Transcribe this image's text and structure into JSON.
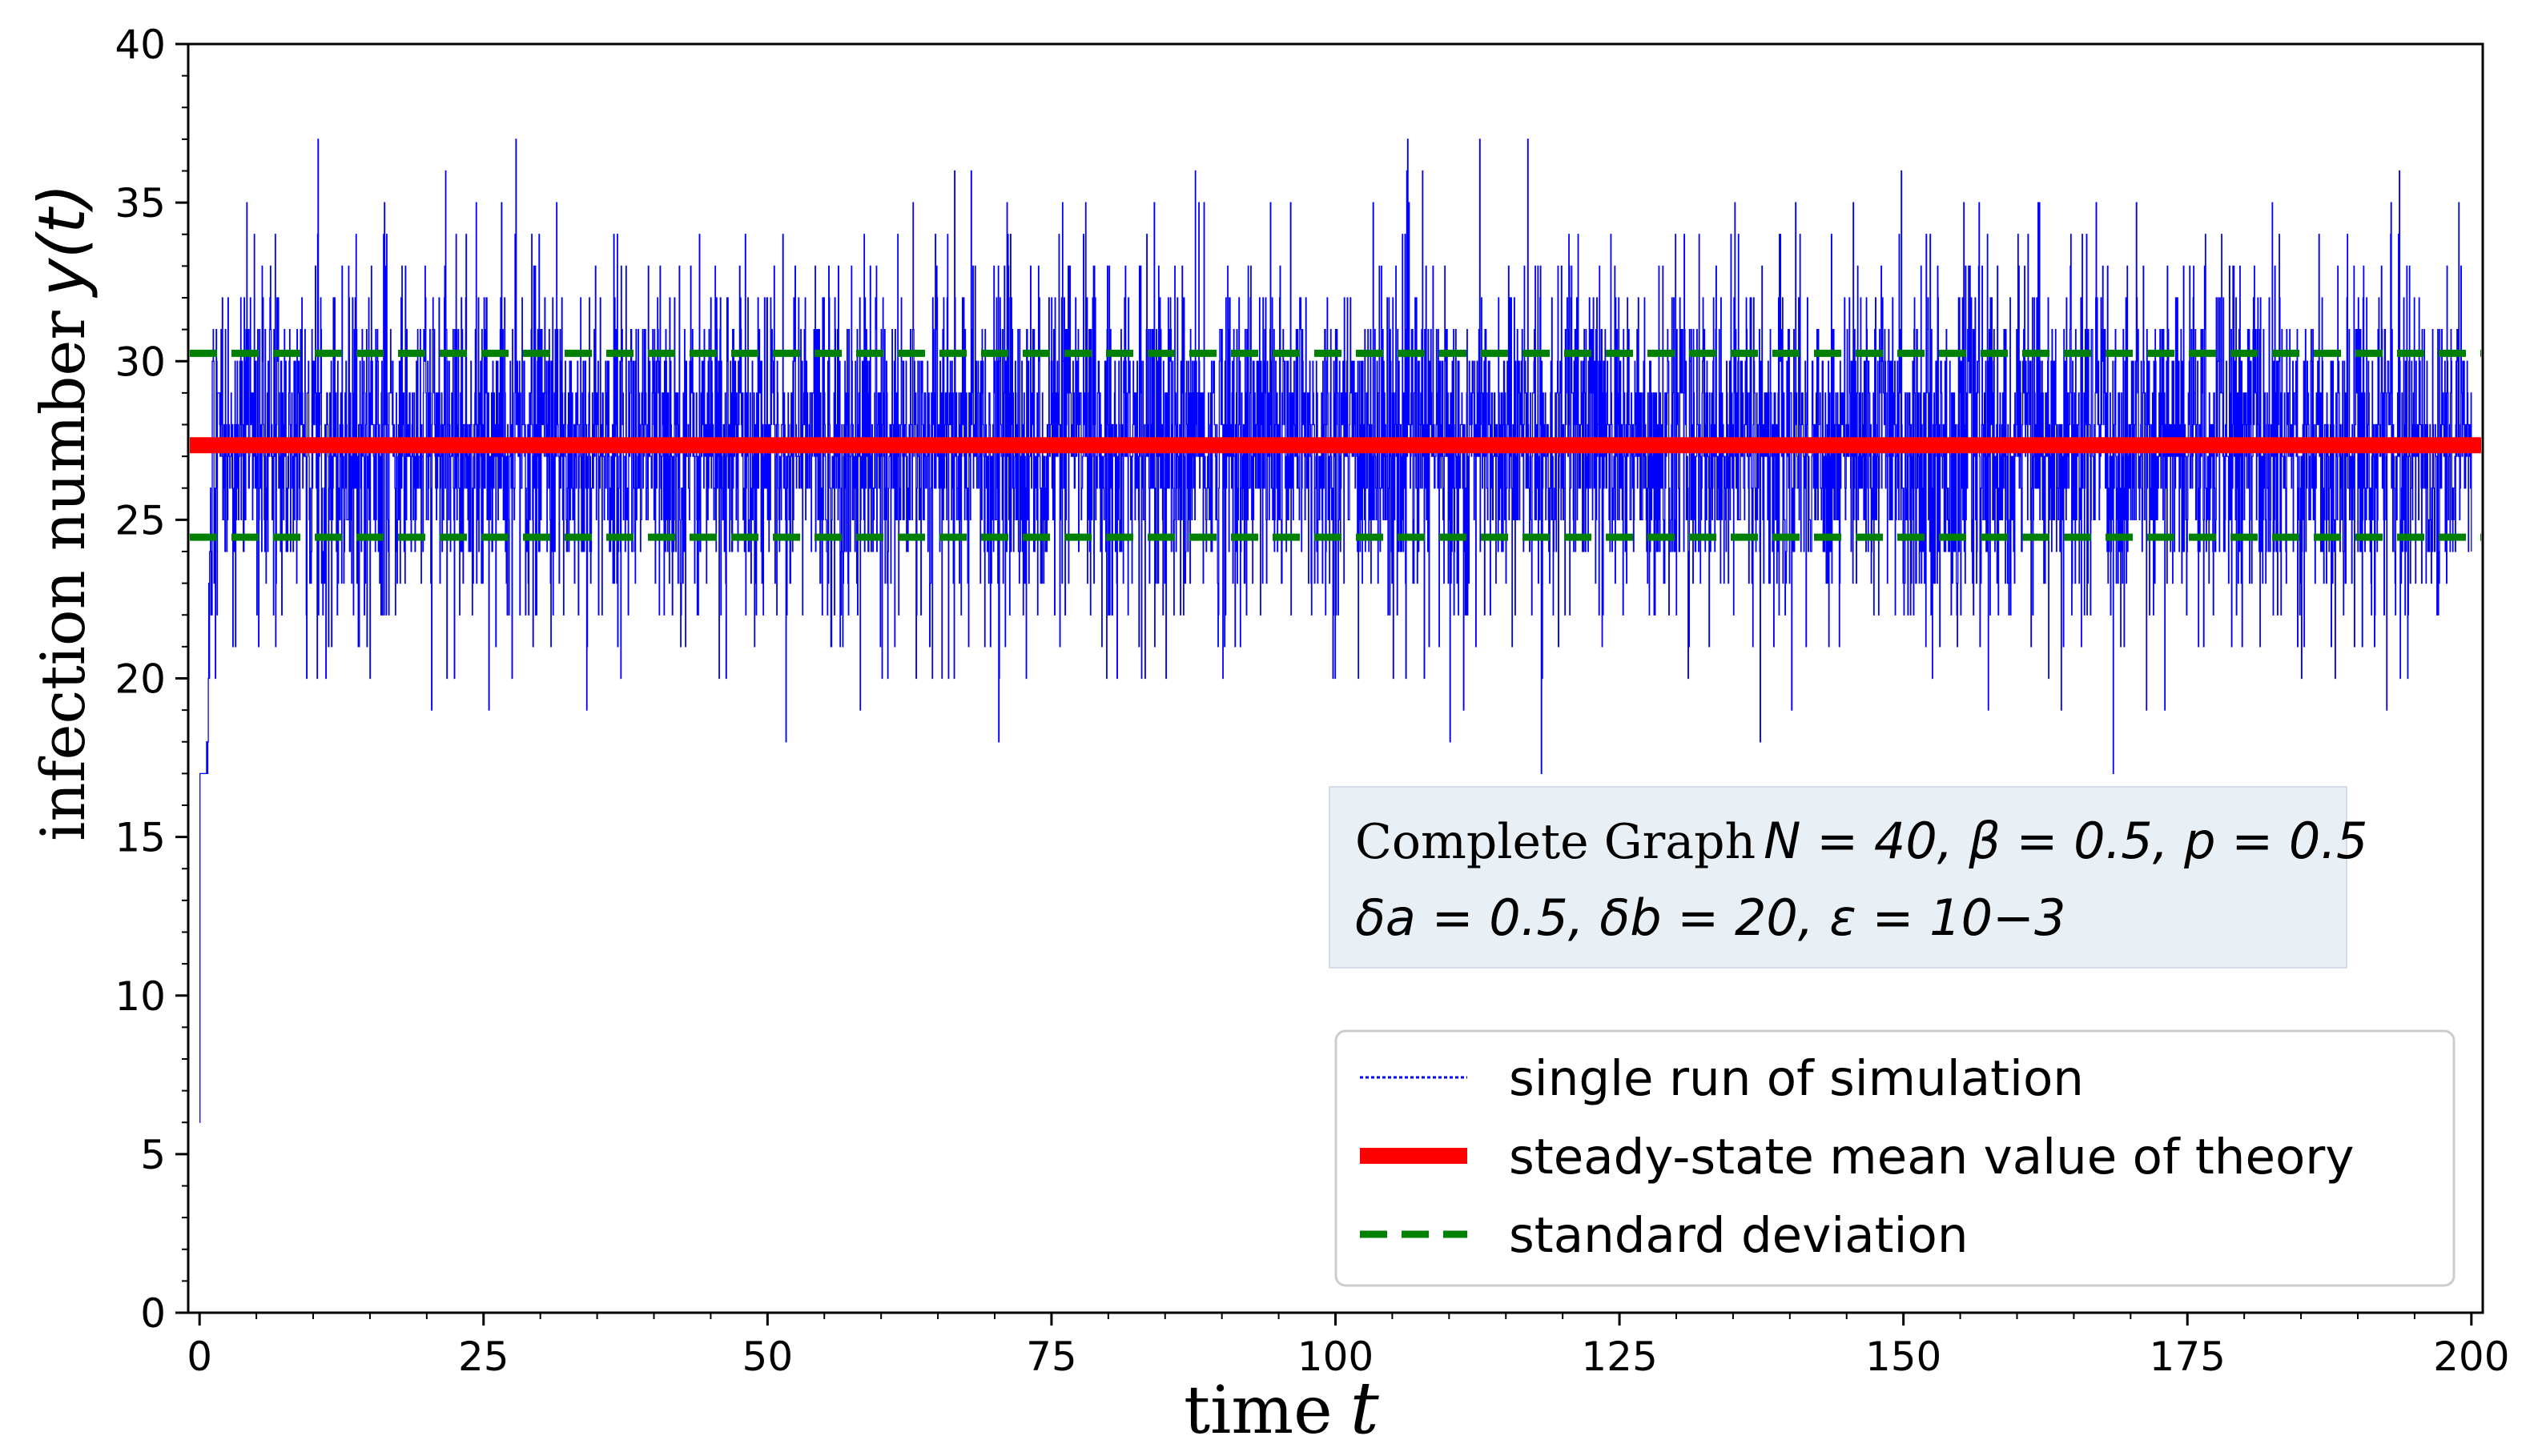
{
  "chart_data": {
    "type": "line",
    "xlabel_text": "time",
    "xlabel_var": "t",
    "ylabel_text": "infection number",
    "ylabel_var": "y(t)",
    "xlim": [
      -1,
      201
    ],
    "ylim": [
      0,
      40
    ],
    "xticks": [
      0,
      25,
      50,
      75,
      100,
      125,
      150,
      175,
      200
    ],
    "yticks": [
      0,
      5,
      10,
      15,
      20,
      25,
      30,
      35,
      40
    ],
    "xtick_labels": [
      "0",
      "25",
      "50",
      "75",
      "100",
      "125",
      "150",
      "175",
      "200"
    ],
    "ytick_labels": [
      "0",
      "5",
      "10",
      "15",
      "20",
      "25",
      "30",
      "35",
      "40"
    ],
    "grid": false,
    "legend_position": "lower-right",
    "series": [
      {
        "name": "single run of simulation",
        "style": "thin blue dotted step line",
        "color": "#0000ff",
        "start_value": 6,
        "typical_range": [
          22,
          33
        ],
        "max_value": 37,
        "min_after_transient": 17,
        "t_start": 0,
        "t_end": 200
      },
      {
        "name": "steady-state mean value of theory",
        "style": "thick solid",
        "color": "#ff0000",
        "y": 27.35
      },
      {
        "name": "standard deviation",
        "style": "dashed",
        "color": "#008000",
        "y_upper": 30.25,
        "y_lower": 24.45
      }
    ],
    "annotation": {
      "line1_text": "Complete Graph",
      "line1_math": "N = 40, β = 0.5, p = 0.5",
      "line2_math": "δa = 0.5, δb = 20, ε = 10−3",
      "background": "#e8eff5"
    }
  }
}
